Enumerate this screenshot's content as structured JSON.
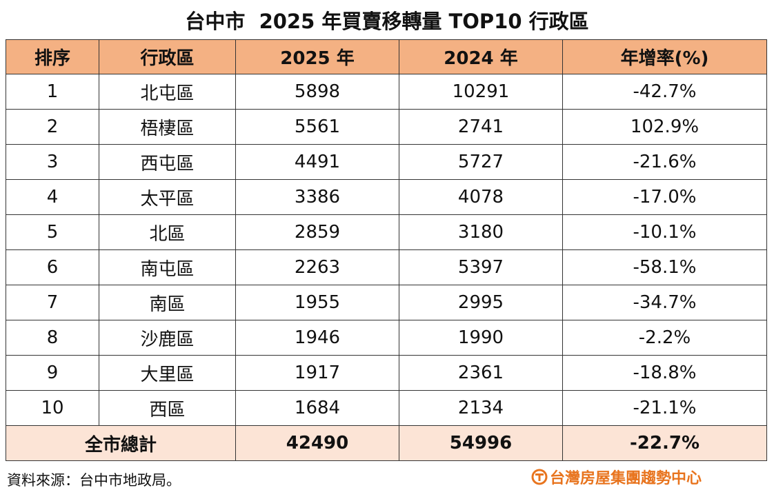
{
  "title": "台中市  2025 年買賣移轉量 TOP10 行政區",
  "table": {
    "header": [
      "排序",
      "行政區",
      "2025 年",
      "2024 年",
      "年增率(%)"
    ],
    "rows": [
      [
        "1",
        "北屯區",
        "5898",
        "10291",
        "-42.7%"
      ],
      [
        "2",
        "梧棲區",
        "5561",
        "2741",
        "102.9%"
      ],
      [
        "3",
        "西屯區",
        "4491",
        "5727",
        "-21.6%"
      ],
      [
        "4",
        "太平區",
        "3386",
        "4078",
        "-17.0%"
      ],
      [
        "5",
        "北區",
        "2859",
        "3180",
        "-10.1%"
      ],
      [
        "6",
        "南屯區",
        "2263",
        "5397",
        "-58.1%"
      ],
      [
        "7",
        "南區",
        "1955",
        "2995",
        "-34.7%"
      ],
      [
        "8",
        "沙鹿區",
        "1946",
        "1990",
        "-2.2%"
      ],
      [
        "9",
        "大里區",
        "1917",
        "2361",
        "-18.8%"
      ],
      [
        "10",
        "西區",
        "1684",
        "2134",
        "-21.1%"
      ]
    ],
    "total": [
      "全市總計",
      "42490",
      "54996",
      "-22.7%"
    ]
  },
  "footer": {
    "source": "資料來源：台中市地政局。",
    "logo": "台灣房屋集團趨勢中心"
  }
}
